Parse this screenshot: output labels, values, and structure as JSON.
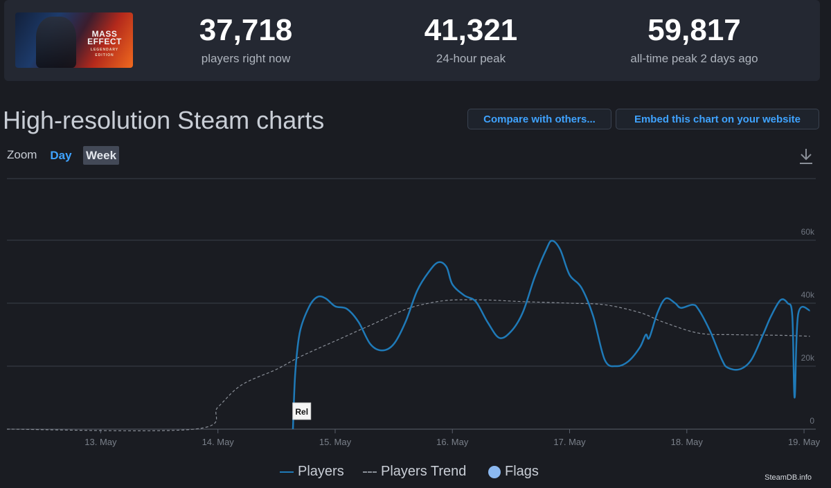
{
  "game": {
    "art_title": "MASS\nEFFECT",
    "art_subtitle": "LEGENDARY EDITION"
  },
  "stats": [
    {
      "value": "37,718",
      "label": "players right now"
    },
    {
      "value": "41,321",
      "label": "24-hour peak"
    },
    {
      "value": "59,817",
      "label": "all-time peak 2 days ago"
    }
  ],
  "section_title": "High-resolution Steam charts",
  "buttons": {
    "compare": "Compare with others...",
    "embed": "Embed this chart on your website"
  },
  "zoom": {
    "label": "Zoom",
    "options": [
      "Day",
      "Week"
    ],
    "selected": "Week"
  },
  "download_icon": "download-icon",
  "legend": {
    "players": "Players",
    "trend": "Players Trend",
    "flags": "Flags"
  },
  "credit": "SteamDB.info",
  "colors": {
    "players": "#1f7ab8",
    "trend": "#8a8f98",
    "flags": "#8bb8f0",
    "accent": "#3fa3ff"
  },
  "chart_data": {
    "type": "line",
    "x_ticks": [
      "13. May",
      "14. May",
      "15. May",
      "16. May",
      "17. May",
      "18. May",
      "19. May"
    ],
    "y_ticks": [
      "0",
      "20k",
      "40k",
      "60k"
    ],
    "ylim": [
      0,
      60000
    ],
    "xlim": [
      12.2,
      19.1
    ],
    "flag": {
      "x": 14.65,
      "label": "Rel"
    },
    "series": [
      {
        "name": "Players",
        "points": [
          [
            14.64,
            0
          ],
          [
            14.66,
            18000
          ],
          [
            14.7,
            31000
          ],
          [
            14.78,
            39000
          ],
          [
            14.85,
            42000
          ],
          [
            14.92,
            41500
          ],
          [
            15.0,
            39000
          ],
          [
            15.1,
            38200
          ],
          [
            15.2,
            34000
          ],
          [
            15.3,
            27000
          ],
          [
            15.4,
            25000
          ],
          [
            15.5,
            27000
          ],
          [
            15.6,
            34000
          ],
          [
            15.7,
            44000
          ],
          [
            15.8,
            50000
          ],
          [
            15.88,
            53000
          ],
          [
            15.95,
            51500
          ],
          [
            16.0,
            46000
          ],
          [
            16.1,
            42500
          ],
          [
            16.2,
            40500
          ],
          [
            16.3,
            34000
          ],
          [
            16.4,
            29000
          ],
          [
            16.5,
            31000
          ],
          [
            16.6,
            37000
          ],
          [
            16.7,
            48000
          ],
          [
            16.8,
            57000
          ],
          [
            16.85,
            59817
          ],
          [
            16.92,
            57000
          ],
          [
            17.0,
            49000
          ],
          [
            17.1,
            45000
          ],
          [
            17.2,
            36000
          ],
          [
            17.3,
            22000
          ],
          [
            17.4,
            20000
          ],
          [
            17.5,
            21500
          ],
          [
            17.6,
            26000
          ],
          [
            17.65,
            30000
          ],
          [
            17.68,
            29000
          ],
          [
            17.75,
            37000
          ],
          [
            17.82,
            41500
          ],
          [
            17.9,
            40000
          ],
          [
            17.95,
            38500
          ],
          [
            18.05,
            39500
          ],
          [
            18.1,
            38000
          ],
          [
            18.2,
            31000
          ],
          [
            18.3,
            22000
          ],
          [
            18.35,
            19500
          ],
          [
            18.45,
            19000
          ],
          [
            18.55,
            22000
          ],
          [
            18.65,
            30000
          ],
          [
            18.72,
            36000
          ],
          [
            18.8,
            41000
          ],
          [
            18.86,
            40000
          ],
          [
            18.9,
            36000
          ],
          [
            18.92,
            10000
          ],
          [
            18.95,
            36500
          ],
          [
            19.05,
            37718
          ]
        ]
      },
      {
        "name": "Players Trend",
        "points": [
          [
            12.2,
            0
          ],
          [
            13.8,
            0
          ],
          [
            14.0,
            7000
          ],
          [
            14.2,
            14000
          ],
          [
            14.5,
            19000
          ],
          [
            14.7,
            23000
          ],
          [
            15.0,
            28000
          ],
          [
            15.3,
            33000
          ],
          [
            15.6,
            38000
          ],
          [
            15.8,
            40000
          ],
          [
            16.0,
            41000
          ],
          [
            16.3,
            41000
          ],
          [
            16.6,
            40500
          ],
          [
            17.0,
            40000
          ],
          [
            17.3,
            39500
          ],
          [
            17.6,
            37000
          ],
          [
            17.8,
            34000
          ],
          [
            18.1,
            30500
          ],
          [
            18.4,
            30000
          ],
          [
            18.8,
            29800
          ],
          [
            19.05,
            29500
          ]
        ]
      }
    ]
  }
}
